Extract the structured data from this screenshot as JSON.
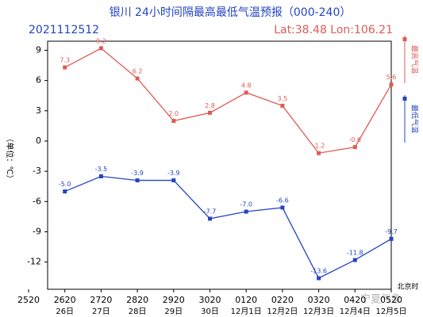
{
  "chart_data": {
    "type": "line",
    "title": "银川 24小时间隔最高最低气温预报（000-240）",
    "subtitle_left": "2021112512",
    "subtitle_right": "Lat:38.48  Lon:106.21",
    "y_label": "（单位：℃）",
    "x_note": "北京时",
    "watermark": "宁夏气象",
    "categories": [
      "2520",
      "2620",
      "2720",
      "2820",
      "2920",
      "3020",
      "0120",
      "0220",
      "0320",
      "0420",
      "0520"
    ],
    "category_dates": [
      null,
      "26日",
      "27日",
      "28日",
      "29日",
      "30日",
      "12月1日",
      "12月2日",
      "12月3日",
      "12月4日",
      "12月5日"
    ],
    "series": [
      {
        "name": "最高气温",
        "color": "#e05a55",
        "values": [
          null,
          7.3,
          9.2,
          6.2,
          2.0,
          2.8,
          4.8,
          3.5,
          -1.2,
          -0.6,
          5.6
        ],
        "value_labels": [
          null,
          "7.3",
          "9.2",
          "6.2",
          "2.0",
          "2.8",
          "4.8",
          "3.5",
          "-1.2",
          "-0.6",
          "5.6"
        ]
      },
      {
        "name": "最低气温",
        "color": "#2445c0",
        "values": [
          null,
          -5.0,
          -3.5,
          -3.9,
          -3.9,
          -7.7,
          -7.0,
          -6.6,
          -13.6,
          -11.8,
          -9.7
        ],
        "value_labels": [
          null,
          "-5.0",
          "-3.5",
          "-3.9",
          "-3.9",
          "-7.7",
          "-7.0",
          "-6.6",
          "-13.6",
          "-11.8",
          "-9.7"
        ]
      }
    ],
    "ylim": [
      -14.7,
      9.9
    ],
    "yticks": [
      9,
      6,
      3,
      0,
      -3,
      -6,
      -9,
      -12
    ],
    "grid": false
  }
}
